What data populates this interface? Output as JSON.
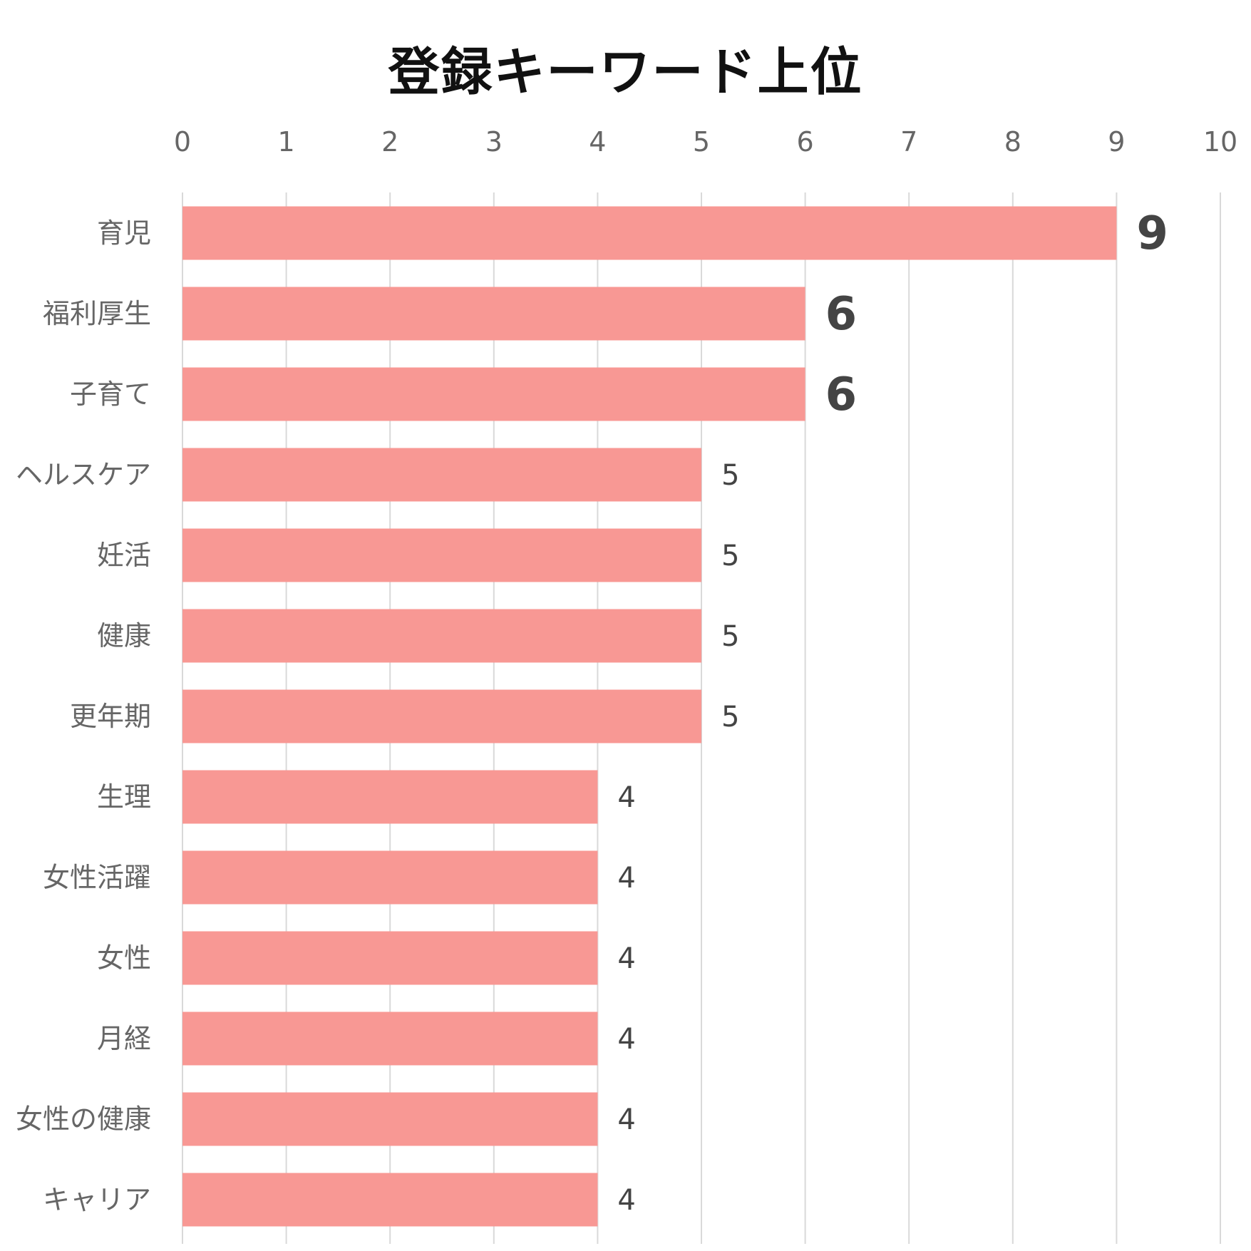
{
  "chart_data": {
    "type": "bar",
    "orientation": "horizontal",
    "title": "登録キーワード上位",
    "categories": [
      "育児",
      "福利厚生",
      "子育て",
      "ヘルスケア",
      "妊活",
      "健康",
      "更年期",
      "生理",
      "女性活躍",
      "女性",
      "月経",
      "女性の健康",
      "キャリア"
    ],
    "values": [
      9,
      6,
      6,
      5,
      5,
      5,
      5,
      4,
      4,
      4,
      4,
      4,
      4
    ],
    "xlim": [
      0,
      10
    ],
    "xticks": [
      "0",
      "1",
      "2",
      "3",
      "4",
      "5",
      "6",
      "7",
      "8",
      "9",
      "10"
    ],
    "x_axis_position": "top",
    "grid": true,
    "legend": "none",
    "bar_color": "#f89894",
    "grid_color": "#d9d9d9",
    "emphasized_value_labels": [
      0,
      1,
      2
    ]
  }
}
